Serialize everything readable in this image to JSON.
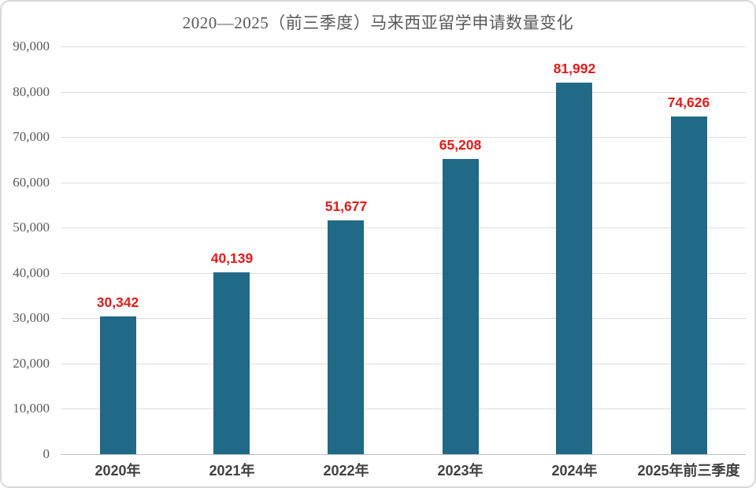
{
  "chart_data": {
    "type": "bar",
    "title": "2020—2025（前三季度）马来西亚留学申请数量变化",
    "categories": [
      "2020年",
      "2021年",
      "2022年",
      "2023年",
      "2024年",
      "2025年前三季度"
    ],
    "values": [
      30342,
      40139,
      51677,
      65208,
      81992,
      74626
    ],
    "value_labels": [
      "30,342",
      "40,139",
      "51,677",
      "65,208",
      "81,992",
      "74,626"
    ],
    "xlabel": "",
    "ylabel": "",
    "ylim": [
      0,
      90000
    ],
    "ytick_values": [
      0,
      10000,
      20000,
      30000,
      40000,
      50000,
      60000,
      70000,
      80000,
      90000
    ],
    "ytick_labels": [
      "0",
      "10,000",
      "20,000",
      "30,000",
      "40,000",
      "50,000",
      "60,000",
      "70,000",
      "80,000",
      "90,000"
    ],
    "grid": "horizontal",
    "legend": "none",
    "colors": {
      "bar": "#206987",
      "value_label": "#E11B1B",
      "title": "#595959",
      "ytick": "#595959",
      "xtick": "#3F3F3F",
      "gridline": "#DCDCDC",
      "axis_line": "#C0C0C0",
      "background": "#FFFFFF",
      "border": "#D9D9D9"
    }
  }
}
